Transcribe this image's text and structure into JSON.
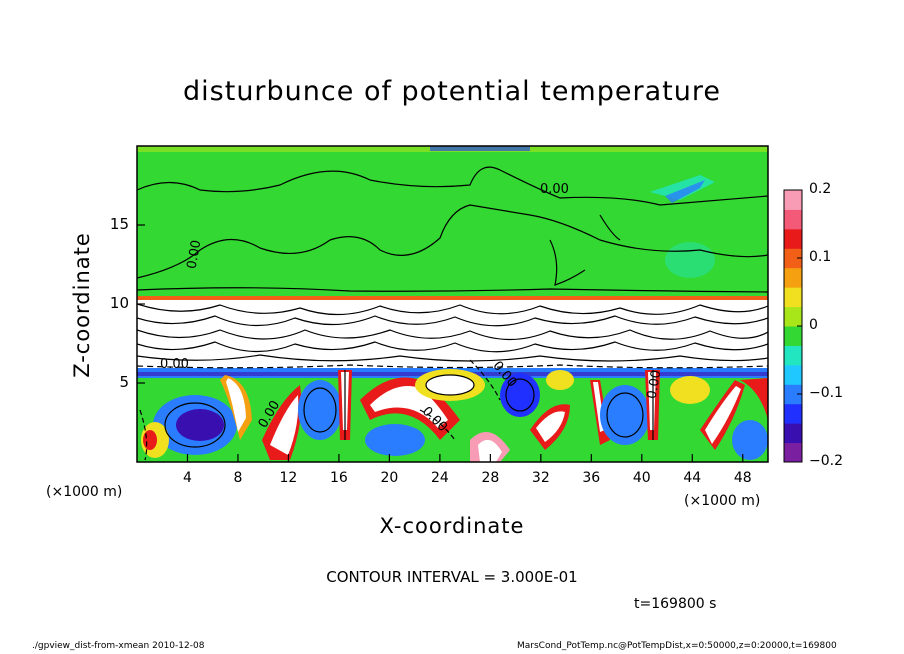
{
  "chart_data": {
    "type": "heatmap",
    "title": "disturbunce of potential temperature",
    "xlabel": "X-coordinate",
    "ylabel": "Z-coordinate",
    "x_unit": "(×1000 m)",
    "x_ticks": [
      4,
      8,
      12,
      16,
      20,
      24,
      28,
      32,
      36,
      40,
      44,
      48
    ],
    "y_ticks": [
      5,
      10,
      15
    ],
    "xlim": [
      0,
      50
    ],
    "ylim": [
      0,
      20
    ],
    "colorbar": {
      "ticks": [
        "0.2",
        "0.1",
        "0",
        "−0.1",
        "−0.2"
      ],
      "range": [
        -0.2,
        0.2
      ],
      "colors": [
        "#7a1fa0",
        "#3a0fb0",
        "#2030ff",
        "#2a7dff",
        "#1fc8ff",
        "#22e6c0",
        "#33d833",
        "#a8e61a",
        "#f0e020",
        "#f5a010",
        "#f26018",
        "#e81a1a",
        "#f25a78",
        "#f79cb4"
      ]
    },
    "contour_labels": [
      "0.00",
      "0.00",
      "0.00",
      "0.00",
      "0.00",
      "0.00",
      "0.00"
    ],
    "contour_interval": "CONTOUR INTERVAL = 3.000E-01",
    "time": "t=169800 s"
  },
  "footer": {
    "left": "./gpview_dist-from-xmean   2010-12-08",
    "right": "MarsCond_PotTemp.nc@PotTempDist,x=0:50000,z=0:20000,t=169800"
  }
}
